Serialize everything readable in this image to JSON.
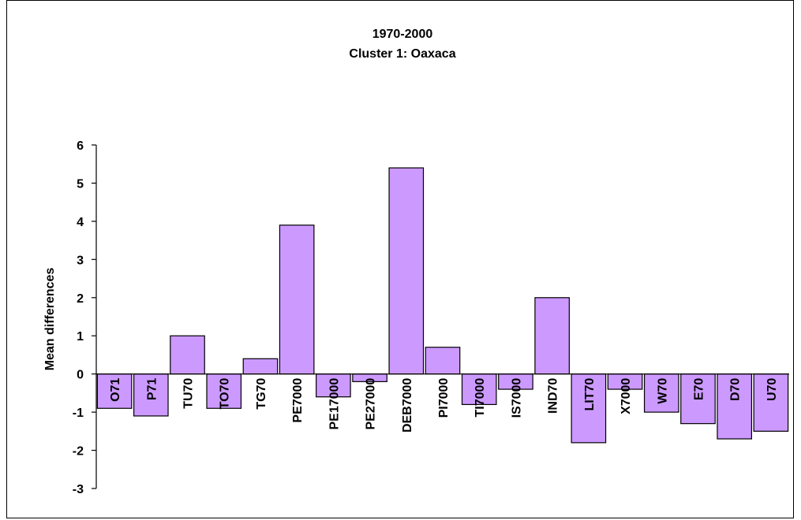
{
  "chart_data": {
    "type": "bar",
    "title": "1970-2000",
    "subtitle": "Cluster 1: Oaxaca",
    "xlabel": "",
    "ylabel": "Mean differences",
    "ylim": [
      -3,
      6
    ],
    "yticks": [
      6,
      5,
      4,
      3,
      2,
      1,
      0,
      -1,
      -2,
      -3
    ],
    "grid": false,
    "bar_color": "#cc99ff",
    "categories": [
      "O71",
      "P71",
      "TU70",
      "TO70",
      "TG70",
      "PE7000",
      "PE17000",
      "PE27000",
      "DEB7000",
      "PI7000",
      "TI7000",
      "IS7000",
      "IND70",
      "LIT70",
      "X7000",
      "W70",
      "E70",
      "D70",
      "U70"
    ],
    "values": [
      -0.9,
      -1.1,
      1.0,
      -0.9,
      0.4,
      3.9,
      -0.6,
      -0.2,
      5.4,
      0.7,
      -0.8,
      -0.4,
      2.0,
      -1.8,
      -0.4,
      -1.0,
      -1.3,
      -1.7,
      -1.5
    ]
  }
}
